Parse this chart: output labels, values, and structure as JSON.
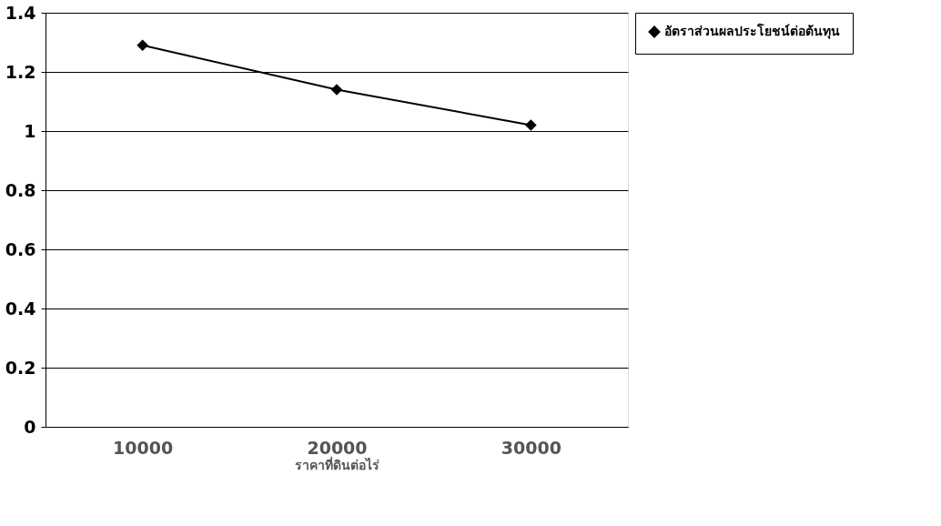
{
  "chart_data": {
    "type": "line",
    "xlabel": "ราคาที่ดินต่อไร่",
    "categories": [
      "10000",
      "20000",
      "30000"
    ],
    "series": [
      {
        "name": "อัตราส่วนผลประโยชน์ต่อต้นทุน",
        "color": "#000000",
        "values": [
          1.29,
          1.14,
          1.02
        ]
      }
    ],
    "ylim": [
      0,
      1.4
    ],
    "yticks": [
      0,
      0.2,
      0.4,
      0.6,
      0.8,
      1,
      1.2,
      1.4
    ],
    "grid": "y",
    "legend": "right",
    "marker": "diamond",
    "line_style": "solid"
  }
}
